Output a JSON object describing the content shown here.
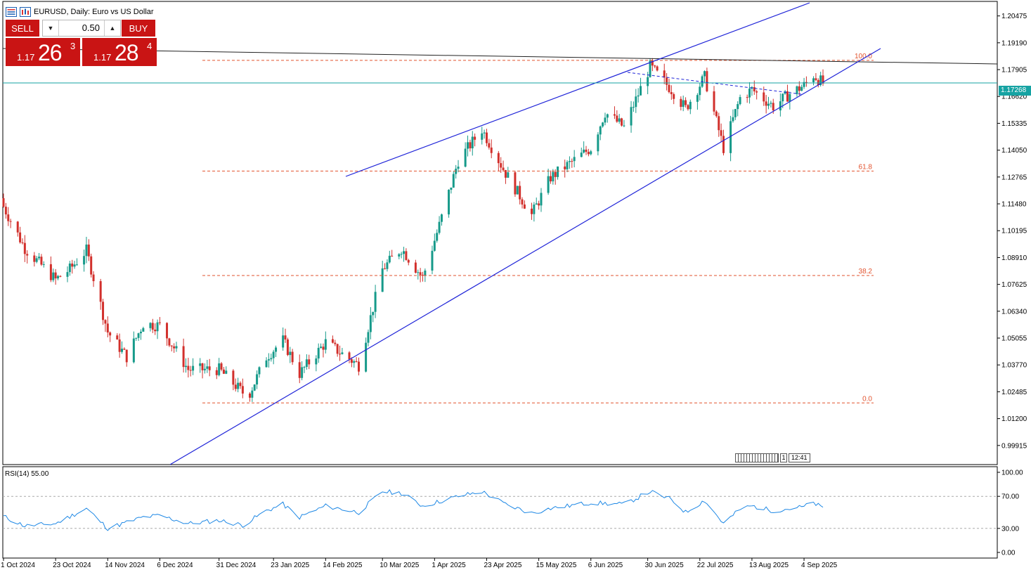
{
  "window": {
    "title": "EURUSD, Daily:  Euro vs US Dollar",
    "icons": [
      "menu-icon",
      "chart-bars-icon"
    ]
  },
  "trade_panel": {
    "sell_label": "SELL",
    "buy_label": "BUY",
    "lot_value": "0.50",
    "sell_price": {
      "small": "1.17",
      "big": "26",
      "sup": "3"
    },
    "buy_price": {
      "small": "1.17",
      "big": "28",
      "sup": "4"
    }
  },
  "current_price_tag": "1.17268",
  "rsi_label": "RSI(14) 55.00",
  "time_box": {
    "one": "1",
    "time": "12:41"
  },
  "colors": {
    "bull": "#169a8a",
    "bear": "#d2302c",
    "channel": "#1f24d8",
    "fib": "#e2532f",
    "price_line": "#16a3a3",
    "rsi": "#1e88e5",
    "trade_red": "#c91414"
  },
  "chart_data": [
    {
      "type": "candlestick",
      "symbol": "EURUSD",
      "timeframe": "Daily",
      "y_ticks": [
        "1.20475",
        "1.19190",
        "1.17905",
        "1.16620",
        "1.15335",
        "1.14050",
        "1.12765",
        "1.11480",
        "1.10195",
        "1.08910",
        "1.07625",
        "1.06340",
        "1.05055",
        "1.03770",
        "1.02485",
        "1.01200",
        "0.99915"
      ],
      "ylim": [
        0.99,
        1.2117
      ],
      "x_labels": [
        "1 Oct 2024",
        "23 Oct 2024",
        "14 Nov 2024",
        "6 Dec 2024",
        "31 Dec 2024",
        "23 Jan 2025",
        "14 Feb 2025",
        "10 Mar 2025",
        "1 Apr 2025",
        "23 Apr 2025",
        "15 May 2025",
        "6 Jun 2025",
        "30 Jun 2025",
        "22 Jul 2025",
        "13 Aug 2025",
        "4 Sep 2025"
      ],
      "current_price": 1.17268,
      "keypoints": [
        {
          "date": "1 Oct 2024",
          "close": 1.1135
        },
        {
          "date": "10 Oct 2024",
          "close": 1.0935
        },
        {
          "date": "23 Oct 2024",
          "close": 1.0785
        },
        {
          "date": "29 Oct 2024",
          "close": 1.0835
        },
        {
          "date": "5 Nov 2024",
          "close": 1.0925
        },
        {
          "date": "14 Nov 2024",
          "close": 1.0535
        },
        {
          "date": "22 Nov 2024",
          "close": 1.0415
        },
        {
          "date": "29 Nov 2024",
          "close": 1.0575
        },
        {
          "date": "6 Dec 2024",
          "close": 1.0565
        },
        {
          "date": "18 Dec 2024",
          "close": 1.0355
        },
        {
          "date": "31 Dec 2024",
          "close": 1.0355
        },
        {
          "date": "10 Jan 2025",
          "close": 1.0245
        },
        {
          "date": "13 Jan 2025",
          "close": 1.0245
        },
        {
          "date": "20 Jan 2025",
          "close": 1.0415
        },
        {
          "date": "27 Jan 2025",
          "close": 1.0495
        },
        {
          "date": "3 Feb 2025",
          "close": 1.0335
        },
        {
          "date": "14 Feb 2025",
          "close": 1.0485
        },
        {
          "date": "28 Feb 2025",
          "close": 1.0375
        },
        {
          "date": "10 Mar 2025",
          "close": 1.0835
        },
        {
          "date": "18 Mar 2025",
          "close": 1.0935
        },
        {
          "date": "27 Mar 2025",
          "close": 1.0795
        },
        {
          "date": "3 Apr 2025",
          "close": 1.1045
        },
        {
          "date": "11 Apr 2025",
          "close": 1.1355
        },
        {
          "date": "21 Apr 2025",
          "close": 1.1505
        },
        {
          "date": "1 May 2025",
          "close": 1.1295
        },
        {
          "date": "12 May 2025",
          "close": 1.1095
        },
        {
          "date": "20 May 2025",
          "close": 1.1275
        },
        {
          "date": "6 Jun 2025",
          "close": 1.1415
        },
        {
          "date": "12 Jun 2025",
          "close": 1.1585
        },
        {
          "date": "20 Jun 2025",
          "close": 1.1515
        },
        {
          "date": "1 Jul 2025",
          "close": 1.1805
        },
        {
          "date": "10 Jul 2025",
          "close": 1.1695
        },
        {
          "date": "16 Jul 2025",
          "close": 1.1605
        },
        {
          "date": "24 Jul 2025",
          "close": 1.1755
        },
        {
          "date": "1 Aug 2025",
          "close": 1.1415
        },
        {
          "date": "8 Aug 2025",
          "close": 1.1655
        },
        {
          "date": "13 Aug 2025",
          "close": 1.1695
        },
        {
          "date": "22 Aug 2025",
          "close": 1.1615
        },
        {
          "date": "29 Aug 2025",
          "close": 1.1675
        },
        {
          "date": "4 Sep 2025",
          "close": 1.1715
        },
        {
          "date": "8 Sep 2025",
          "close": 1.1765
        },
        {
          "date": "12 Sep 2025",
          "close": 1.1725
        }
      ],
      "fib_levels": [
        {
          "label": "100.0",
          "price": 1.1835
        },
        {
          "label": "61.8",
          "price": 1.1305
        },
        {
          "label": "38.2",
          "price": 1.0805
        },
        {
          "label": "0.0",
          "price": 1.0195
        }
      ]
    },
    {
      "type": "line",
      "name": "RSI(14)",
      "ylim": [
        0,
        100
      ],
      "y_ticks": [
        "100.00",
        "70.00",
        "30.00",
        "0.00"
      ],
      "levels": [
        70,
        30
      ],
      "last_value": 55.0,
      "keypoints": [
        {
          "date": "1 Oct 2024",
          "value": 45
        },
        {
          "date": "10 Oct 2024",
          "value": 33
        },
        {
          "date": "23 Oct 2024",
          "value": 36
        },
        {
          "date": "5 Nov 2024",
          "value": 55
        },
        {
          "date": "14 Nov 2024",
          "value": 30
        },
        {
          "date": "29 Nov 2024",
          "value": 44
        },
        {
          "date": "6 Dec 2024",
          "value": 46
        },
        {
          "date": "18 Dec 2024",
          "value": 36
        },
        {
          "date": "31 Dec 2024",
          "value": 40
        },
        {
          "date": "10 Jan 2025",
          "value": 34
        },
        {
          "date": "20 Jan 2025",
          "value": 52
        },
        {
          "date": "27 Jan 2025",
          "value": 60
        },
        {
          "date": "3 Feb 2025",
          "value": 44
        },
        {
          "date": "14 Feb 2025",
          "value": 58
        },
        {
          "date": "28 Feb 2025",
          "value": 50
        },
        {
          "date": "10 Mar 2025",
          "value": 76
        },
        {
          "date": "18 Mar 2025",
          "value": 74
        },
        {
          "date": "27 Mar 2025",
          "value": 58
        },
        {
          "date": "11 Apr 2025",
          "value": 70
        },
        {
          "date": "21 Apr 2025",
          "value": 76
        },
        {
          "date": "1 May 2025",
          "value": 60
        },
        {
          "date": "12 May 2025",
          "value": 49
        },
        {
          "date": "20 May 2025",
          "value": 55
        },
        {
          "date": "6 Jun 2025",
          "value": 62
        },
        {
          "date": "20 Jun 2025",
          "value": 60
        },
        {
          "date": "1 Jul 2025",
          "value": 76
        },
        {
          "date": "10 Jul 2025",
          "value": 66
        },
        {
          "date": "16 Jul 2025",
          "value": 50
        },
        {
          "date": "24 Jul 2025",
          "value": 65
        },
        {
          "date": "1 Aug 2025",
          "value": 36
        },
        {
          "date": "8 Aug 2025",
          "value": 54
        },
        {
          "date": "13 Aug 2025",
          "value": 58
        },
        {
          "date": "22 Aug 2025",
          "value": 52
        },
        {
          "date": "4 Sep 2025",
          "value": 57
        },
        {
          "date": "8 Sep 2025",
          "value": 62
        },
        {
          "date": "12 Sep 2025",
          "value": 55
        }
      ]
    }
  ]
}
